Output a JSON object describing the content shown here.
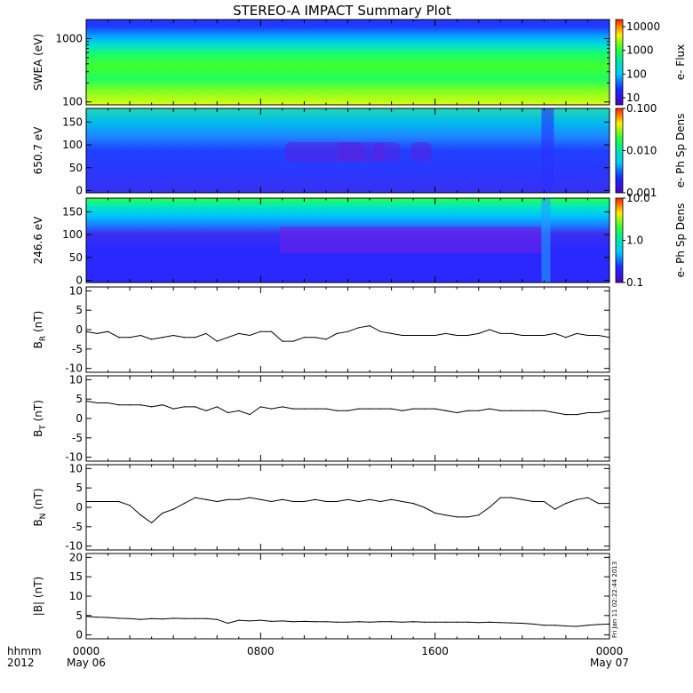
{
  "page": {
    "title": "STEREO-A IMPACT Summary Plot",
    "corner_label_1": "hhmm",
    "corner_label_2": "2012",
    "x_ticks": [
      {
        "hour": 0,
        "label": "0000",
        "sub": "May 06"
      },
      {
        "hour": 8,
        "label": "0800",
        "sub": ""
      },
      {
        "hour": 16,
        "label": "1600",
        "sub": ""
      },
      {
        "hour": 24,
        "label": "0000",
        "sub": "May 07"
      }
    ],
    "footer_stamp": "Fri Jan 11 02:22:44 2013",
    "colors": {
      "line": "#000000",
      "frame": "#000000"
    }
  },
  "chart_data": [
    {
      "type": "heatmap",
      "ylabel": "SWEA (eV)",
      "yscale": "log",
      "ylim": [
        90,
        2000
      ],
      "yticks": [
        {
          "v": 100,
          "label": "100"
        },
        {
          "v": 1000,
          "label": "1000"
        }
      ],
      "xlim_hours": [
        0,
        24
      ],
      "colorbar": {
        "label": "e- Flux",
        "scale": "log",
        "range": [
          5,
          20000
        ],
        "ticks": [
          {
            "v": 10,
            "label": "10"
          },
          {
            "v": 100,
            "label": "100"
          },
          {
            "v": 1000,
            "label": "1000"
          },
          {
            "v": 10000,
            "label": "10000"
          }
        ]
      }
    },
    {
      "type": "heatmap",
      "ylabel": "650.7 eV",
      "ylim": [
        -5,
        180
      ],
      "yticks": [
        {
          "v": 0,
          "label": "0"
        },
        {
          "v": 50,
          "label": "50"
        },
        {
          "v": 100,
          "label": "100"
        },
        {
          "v": 150,
          "label": "150"
        }
      ],
      "xlim_hours": [
        0,
        24
      ],
      "colorbar": {
        "label": "e- Ph Sp Dens",
        "scale": "log",
        "range": [
          0.001,
          0.1
        ],
        "ticks": [
          {
            "v": 0.001,
            "label": "0.001"
          },
          {
            "v": 0.01,
            "label": "0.010"
          },
          {
            "v": 0.1,
            "label": "0.100"
          }
        ]
      }
    },
    {
      "type": "heatmap",
      "ylabel": "246.6 eV",
      "ylim": [
        -5,
        180
      ],
      "yticks": [
        {
          "v": 0,
          "label": "0"
        },
        {
          "v": 50,
          "label": "50"
        },
        {
          "v": 100,
          "label": "100"
        },
        {
          "v": 150,
          "label": "150"
        }
      ],
      "xlim_hours": [
        0,
        24
      ],
      "colorbar": {
        "label": "e- Ph Sp Dens",
        "scale": "log",
        "range": [
          0.1,
          10
        ],
        "ticks": [
          {
            "v": 0.1,
            "label": "0.1"
          },
          {
            "v": 1,
            "label": "1.0"
          },
          {
            "v": 10,
            "label": "10.0"
          }
        ]
      }
    },
    {
      "type": "line",
      "ylabel_main": "B",
      "ylabel_sub": "R",
      "ylabel_unit": " (nT)",
      "ylim": [
        -11,
        11
      ],
      "yticks": [
        {
          "v": -10,
          "label": "-10"
        },
        {
          "v": -5,
          "label": "-5"
        },
        {
          "v": 0,
          "label": "0"
        },
        {
          "v": 5,
          "label": "5"
        },
        {
          "v": 10,
          "label": "10"
        }
      ],
      "x": [
        0,
        0.5,
        1,
        1.5,
        2,
        2.5,
        3,
        3.5,
        4,
        4.5,
        5,
        5.5,
        6,
        6.5,
        7,
        7.5,
        8,
        8.5,
        9,
        9.5,
        10,
        10.5,
        11,
        11.5,
        12,
        12.5,
        13,
        13.5,
        14,
        14.5,
        15,
        15.5,
        16,
        16.5,
        17,
        17.5,
        18,
        18.5,
        19,
        19.5,
        20,
        20.5,
        21,
        21.5,
        22,
        22.5,
        23,
        23.5,
        24
      ],
      "y": [
        -0.5,
        -1,
        -0.5,
        -2,
        -2,
        -1.5,
        -2.5,
        -2,
        -1.5,
        -2,
        -2,
        -1,
        -3,
        -2,
        -1,
        -1.5,
        -0.5,
        -0.5,
        -3,
        -3,
        -2,
        -2,
        -2.5,
        -1,
        -0.5,
        0.5,
        1,
        -0.5,
        -1,
        -1.5,
        -1.5,
        -1.5,
        -1.5,
        -1,
        -1.5,
        -1.5,
        -1,
        0,
        -1,
        -1,
        -1.5,
        -1.5,
        -1.5,
        -1,
        -2,
        -1,
        -1.5,
        -1.5,
        -2
      ]
    },
    {
      "type": "line",
      "ylabel_main": "B",
      "ylabel_sub": "T",
      "ylabel_unit": " (nT)",
      "ylim": [
        -11,
        11
      ],
      "yticks": [
        {
          "v": -10,
          "label": "-10"
        },
        {
          "v": -5,
          "label": "-5"
        },
        {
          "v": 0,
          "label": "0"
        },
        {
          "v": 5,
          "label": "5"
        },
        {
          "v": 10,
          "label": "10"
        }
      ],
      "x": [
        0,
        0.5,
        1,
        1.5,
        2,
        2.5,
        3,
        3.5,
        4,
        4.5,
        5,
        5.5,
        6,
        6.5,
        7,
        7.5,
        8,
        8.5,
        9,
        9.5,
        10,
        10.5,
        11,
        11.5,
        12,
        12.5,
        13,
        13.5,
        14,
        14.5,
        15,
        15.5,
        16,
        16.5,
        17,
        17.5,
        18,
        18.5,
        19,
        19.5,
        20,
        20.5,
        21,
        21.5,
        22,
        22.5,
        23,
        23.5,
        24
      ],
      "y": [
        4.5,
        4,
        4,
        3.5,
        3.5,
        3.5,
        3,
        3.5,
        2.5,
        3,
        3,
        2,
        3,
        1.5,
        2,
        1,
        3,
        2.5,
        3,
        2.5,
        2.5,
        2.5,
        2.5,
        2,
        2,
        2.5,
        2.5,
        2.5,
        2.5,
        2,
        2.5,
        2.5,
        2.5,
        2,
        1.5,
        2,
        2,
        2.5,
        2,
        2,
        2,
        2,
        2,
        1.5,
        1,
        1,
        1.5,
        1.5,
        2
      ]
    },
    {
      "type": "line",
      "ylabel_main": "B",
      "ylabel_sub": "N",
      "ylabel_unit": " (nT)",
      "ylim": [
        -11,
        11
      ],
      "yticks": [
        {
          "v": -10,
          "label": "-10"
        },
        {
          "v": -5,
          "label": "-5"
        },
        {
          "v": 0,
          "label": "0"
        },
        {
          "v": 5,
          "label": "5"
        },
        {
          "v": 10,
          "label": "10"
        }
      ],
      "x": [
        0,
        0.5,
        1,
        1.5,
        2,
        2.5,
        3,
        3.5,
        4,
        4.5,
        5,
        5.5,
        6,
        6.5,
        7,
        7.5,
        8,
        8.5,
        9,
        9.5,
        10,
        10.5,
        11,
        11.5,
        12,
        12.5,
        13,
        13.5,
        14,
        14.5,
        15,
        15.5,
        16,
        16.5,
        17,
        17.5,
        18,
        18.5,
        19,
        19.5,
        20,
        20.5,
        21,
        21.5,
        22,
        22.5,
        23,
        23.5,
        24
      ],
      "y": [
        1.5,
        1.5,
        1.5,
        1.5,
        0.5,
        -2,
        -4,
        -1.5,
        -0.5,
        1,
        2.5,
        2,
        1.5,
        2,
        2,
        2.5,
        2,
        1.5,
        2,
        1.5,
        1.5,
        2,
        1.5,
        1.5,
        2,
        1.5,
        2,
        1.5,
        2,
        1.5,
        1,
        0,
        -1.5,
        -2,
        -2.5,
        -2.5,
        -2,
        0,
        2.5,
        2.5,
        2,
        1.5,
        1.5,
        -0.5,
        1,
        2,
        2.5,
        1,
        1
      ]
    },
    {
      "type": "line",
      "ylabel_main": "|B|",
      "ylabel_sub": "",
      "ylabel_unit": " (nT)",
      "ylim": [
        -1,
        21
      ],
      "yticks": [
        {
          "v": 0,
          "label": "0"
        },
        {
          "v": 5,
          "label": "5"
        },
        {
          "v": 10,
          "label": "10"
        },
        {
          "v": 15,
          "label": "15"
        },
        {
          "v": 20,
          "label": "20"
        }
      ],
      "x": [
        0,
        0.5,
        1,
        1.5,
        2,
        2.5,
        3,
        3.5,
        4,
        4.5,
        5,
        5.5,
        6,
        6.5,
        7,
        7.5,
        8,
        8.5,
        9,
        9.5,
        10,
        10.5,
        11,
        11.5,
        12,
        12.5,
        13,
        13.5,
        14,
        14.5,
        15,
        15.5,
        16,
        16.5,
        17,
        17.5,
        18,
        18.5,
        19,
        19.5,
        20,
        20.5,
        21,
        21.5,
        22,
        22.5,
        23,
        23.5,
        24
      ],
      "y": [
        4.8,
        4.6,
        4.5,
        4.3,
        4.2,
        4,
        4.2,
        4.1,
        4.3,
        4.2,
        4.2,
        4.2,
        4,
        3,
        3.8,
        3.6,
        3.8,
        3.5,
        3.6,
        3.4,
        3.5,
        3.4,
        3.4,
        3.3,
        3.3,
        3.4,
        3.3,
        3.4,
        3.4,
        3.3,
        3.4,
        3.3,
        3.3,
        3.3,
        3.3,
        3.3,
        3.2,
        3.3,
        3.2,
        3.1,
        3,
        2.8,
        2.5,
        2.5,
        2.3,
        2.2,
        2.5,
        2.7,
        2.8
      ]
    }
  ]
}
